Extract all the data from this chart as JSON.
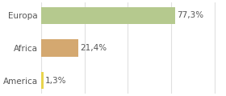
{
  "categories": [
    "America",
    "Africa",
    "Europa"
  ],
  "values": [
    1.3,
    21.4,
    77.3
  ],
  "bar_colors": [
    "#e8d44d",
    "#d4a870",
    "#b5c98e"
  ],
  "labels": [
    "1,3%",
    "21,4%",
    "77,3%"
  ],
  "figsize": [
    2.8,
    1.2
  ],
  "dpi": 100,
  "background_color": "#ffffff",
  "bar_height": 0.52,
  "xlim": [
    0,
    105
  ],
  "label_fontsize": 7.5,
  "tick_fontsize": 7.5,
  "grid_color": "#e0e0e0",
  "text_color": "#555555"
}
